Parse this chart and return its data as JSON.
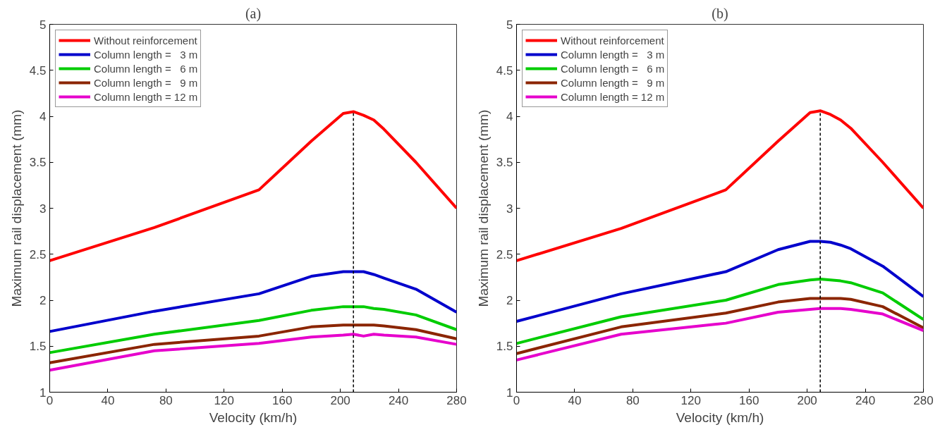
{
  "chart_data": [
    {
      "type": "line",
      "title": "(a)",
      "xlabel": "Velocity (km/h)",
      "ylabel": "Maximum rail displacement (mm)",
      "x": [
        0,
        72,
        144,
        180,
        202,
        209,
        216,
        223,
        230,
        252,
        280
      ],
      "xlim": [
        0,
        280
      ],
      "xticks": [
        0,
        40,
        80,
        120,
        160,
        200,
        240,
        280
      ],
      "ylim": [
        1,
        5
      ],
      "yticks": [
        1,
        1.5,
        2,
        2.5,
        3,
        3.5,
        4,
        4.5,
        5
      ],
      "grid": false,
      "legend": "top left",
      "marker": "none",
      "line_style": "solid",
      "ref_lines": [
        {
          "axis": "x",
          "value": 209,
          "line_style": "dashed",
          "color": "#000000"
        }
      ],
      "series": [
        {
          "name": "Without reinforcement",
          "color": "#ff0000",
          "values": [
            2.43,
            2.79,
            3.2,
            3.73,
            4.03,
            4.05,
            4.01,
            3.96,
            3.86,
            3.5,
            3.0
          ]
        },
        {
          "name": "Column length =   3 m",
          "color": "#0000cc",
          "values": [
            1.66,
            1.88,
            2.07,
            2.26,
            2.31,
            2.31,
            2.31,
            2.28,
            2.24,
            2.12,
            1.87
          ]
        },
        {
          "name": "Column length =   6 m",
          "color": "#00cc00",
          "values": [
            1.43,
            1.63,
            1.78,
            1.89,
            1.93,
            1.93,
            1.93,
            1.91,
            1.9,
            1.84,
            1.68
          ]
        },
        {
          "name": "Column length =   9 m",
          "color": "#8b2500",
          "values": [
            1.32,
            1.52,
            1.61,
            1.71,
            1.73,
            1.73,
            1.73,
            1.73,
            1.72,
            1.68,
            1.58
          ]
        },
        {
          "name": "Column length = 12 m",
          "color": "#e600cc",
          "values": [
            1.24,
            1.45,
            1.53,
            1.6,
            1.62,
            1.63,
            1.61,
            1.63,
            1.62,
            1.6,
            1.52
          ]
        }
      ]
    },
    {
      "type": "line",
      "title": "(b)",
      "xlabel": "Velocity (km/h)",
      "ylabel": "Maximum rail displacement (mm)",
      "x": [
        0,
        72,
        144,
        180,
        202,
        209,
        216,
        223,
        230,
        252,
        280
      ],
      "xlim": [
        0,
        280
      ],
      "xticks": [
        0,
        40,
        80,
        120,
        160,
        200,
        240,
        280
      ],
      "ylim": [
        1,
        5
      ],
      "yticks": [
        1,
        1.5,
        2,
        2.5,
        3,
        3.5,
        4,
        4.5,
        5
      ],
      "grid": false,
      "legend": "top left",
      "marker": "none",
      "line_style": "solid",
      "ref_lines": [
        {
          "axis": "x",
          "value": 209,
          "line_style": "dashed",
          "color": "#000000"
        }
      ],
      "series": [
        {
          "name": "Without reinforcement",
          "color": "#ff0000",
          "values": [
            2.43,
            2.78,
            3.2,
            3.73,
            4.04,
            4.06,
            4.02,
            3.96,
            3.87,
            3.5,
            3.0
          ]
        },
        {
          "name": "Column length =   3 m",
          "color": "#0000cc",
          "values": [
            1.77,
            2.07,
            2.31,
            2.55,
            2.64,
            2.64,
            2.63,
            2.6,
            2.56,
            2.37,
            2.04
          ]
        },
        {
          "name": "Column length =   6 m",
          "color": "#00cc00",
          "values": [
            1.53,
            1.82,
            2.0,
            2.17,
            2.22,
            2.23,
            2.22,
            2.21,
            2.19,
            2.08,
            1.79
          ]
        },
        {
          "name": "Column length =   9 m",
          "color": "#8b2500",
          "values": [
            1.42,
            1.71,
            1.86,
            1.98,
            2.02,
            2.02,
            2.02,
            2.02,
            2.01,
            1.93,
            1.7
          ]
        },
        {
          "name": "Column length = 12 m",
          "color": "#e600cc",
          "values": [
            1.35,
            1.63,
            1.75,
            1.87,
            1.9,
            1.91,
            1.91,
            1.91,
            1.9,
            1.85,
            1.67
          ]
        }
      ]
    }
  ]
}
